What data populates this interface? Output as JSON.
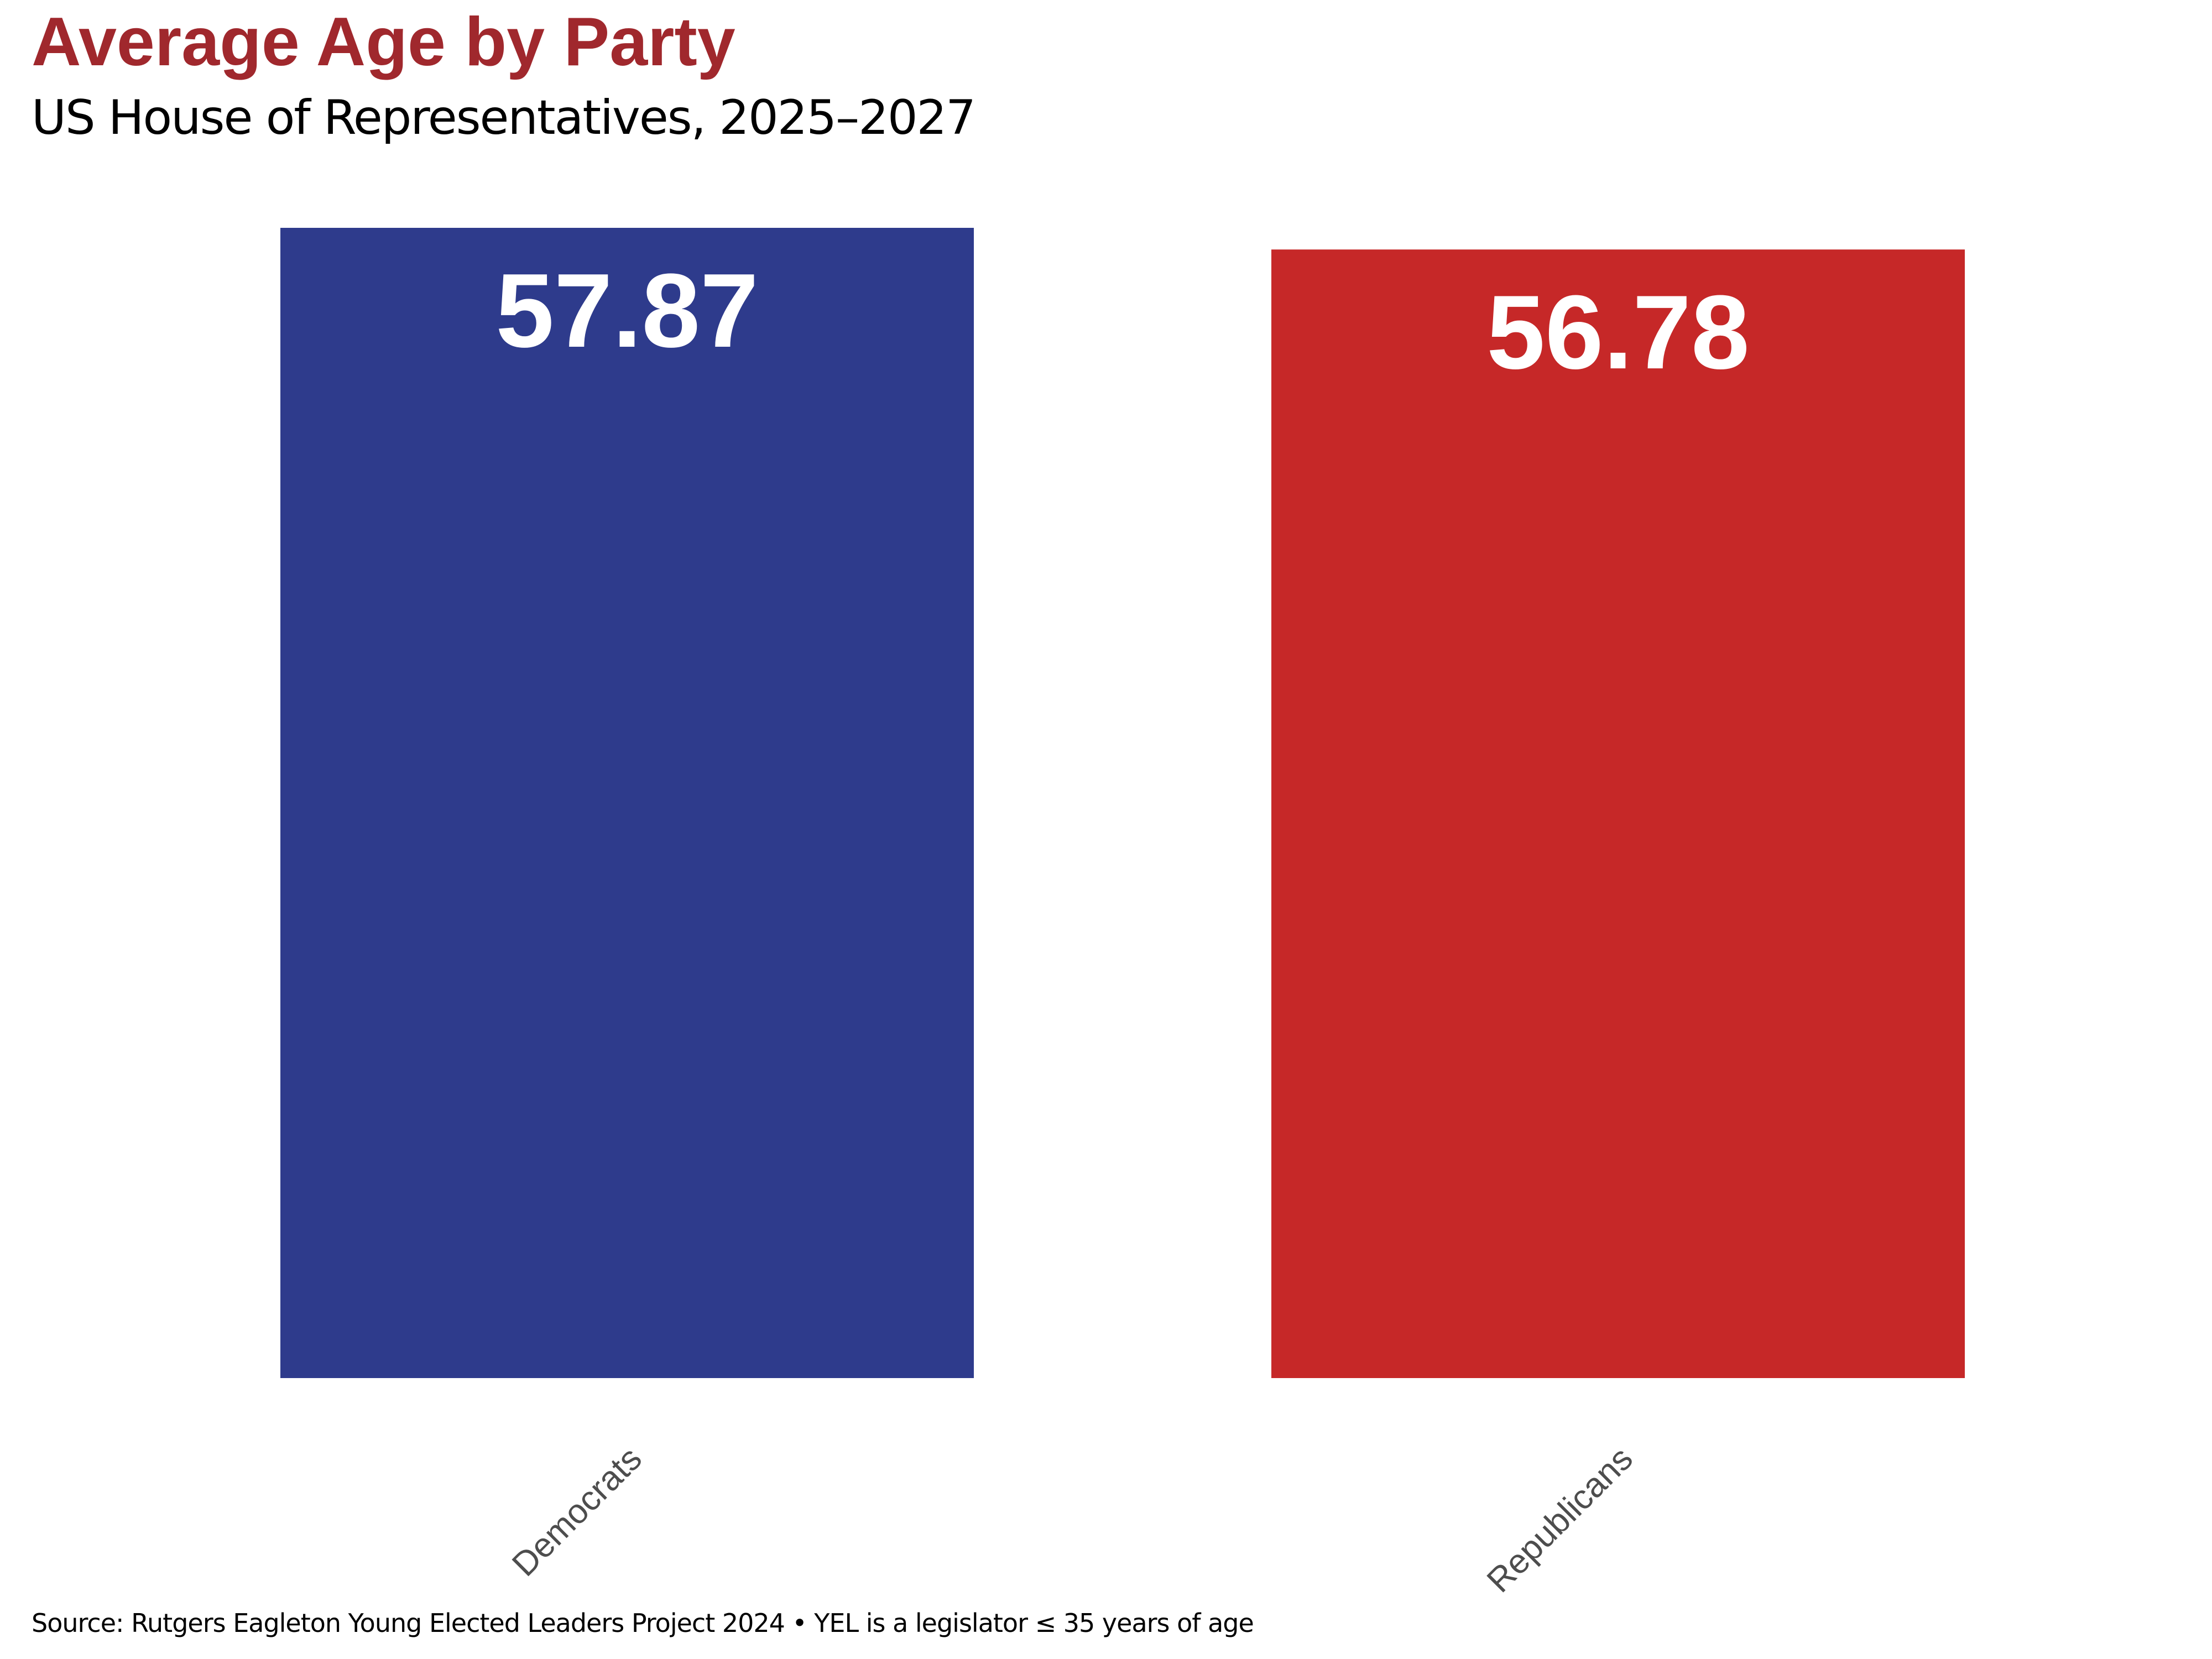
{
  "chart_data": {
    "type": "bar",
    "title": "Average Age by Party",
    "subtitle": "US House of Representatives, 2025–2027",
    "caption": "Source: Rutgers Eagleton Young Elected Leaders Project 2024 • YEL is a legislator ≤ 35 years of age",
    "categories": [
      "Democrats",
      "Republicans"
    ],
    "values": [
      57.87,
      56.78
    ],
    "data_labels": [
      "57.87",
      "56.78"
    ],
    "colors": [
      "#2E3B8C",
      "#C62828"
    ],
    "ylim": [
      0,
      57.87
    ],
    "grid": false,
    "legend": "none",
    "xlabel": "",
    "ylabel": ""
  },
  "style": {
    "title_color": "#A0282D",
    "label_color": "#FFFFFF",
    "tick_color": "#4D4D4D"
  }
}
